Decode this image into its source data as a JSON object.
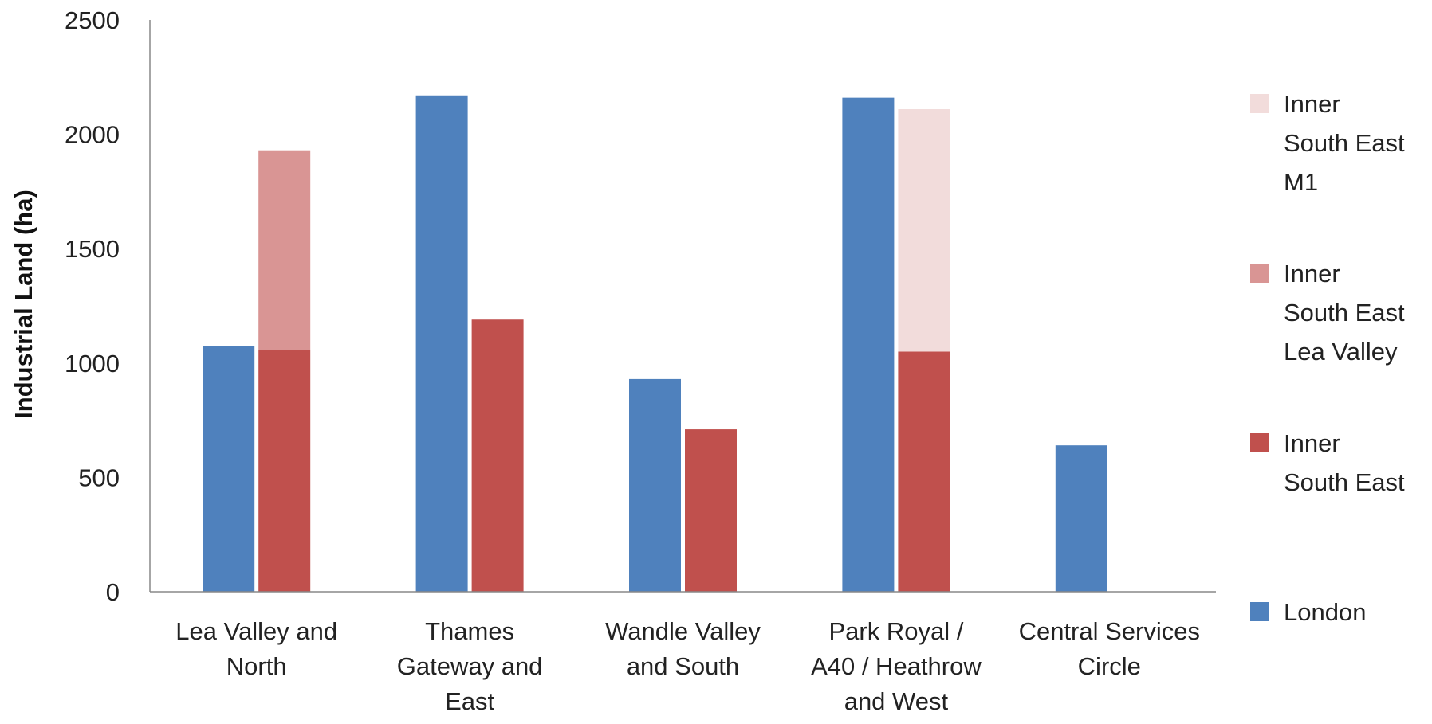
{
  "chart_data": {
    "type": "bar",
    "title": "",
    "xlabel": "",
    "ylabel": "Industrial Land (ha)",
    "ylim": [
      0,
      2500
    ],
    "yticks": [
      0,
      500,
      1000,
      1500,
      2000,
      2500
    ],
    "grid": false,
    "legend_position": "right",
    "categories": [
      [
        "Lea Valley and",
        "North"
      ],
      [
        "Thames",
        "Gateway and",
        "East"
      ],
      [
        "Wandle Valley",
        "and South"
      ],
      [
        "Park Royal /",
        "A40 / Heathrow",
        "and West"
      ],
      [
        "Central Services",
        "Circle"
      ]
    ],
    "series": [
      {
        "name": "London",
        "color": "#4F81BD",
        "stack": "left",
        "values": [
          1075,
          2170,
          930,
          2160,
          640
        ]
      },
      {
        "name": "Inner South East",
        "color": "#C0504D",
        "stack": "right",
        "values": [
          1055,
          1190,
          710,
          1050,
          0
        ]
      },
      {
        "name": "Inner South East Lea Valley",
        "color": "#D99594",
        "stack": "right",
        "values": [
          875,
          0,
          0,
          0,
          0
        ]
      },
      {
        "name": "Inner South East M1",
        "color": "#F2DCDB",
        "stack": "right",
        "values": [
          0,
          0,
          0,
          1060,
          0
        ]
      }
    ],
    "legend": [
      {
        "lines": [
          "Inner",
          "South East",
          "M1"
        ],
        "color": "#F2DCDB"
      },
      {
        "lines": [
          "Inner",
          "South East",
          "Lea Valley"
        ],
        "color": "#D99594"
      },
      {
        "lines": [
          "Inner",
          "South East"
        ],
        "color": "#C0504D"
      },
      {
        "lines": [
          "London"
        ],
        "color": "#4F81BD"
      }
    ]
  }
}
